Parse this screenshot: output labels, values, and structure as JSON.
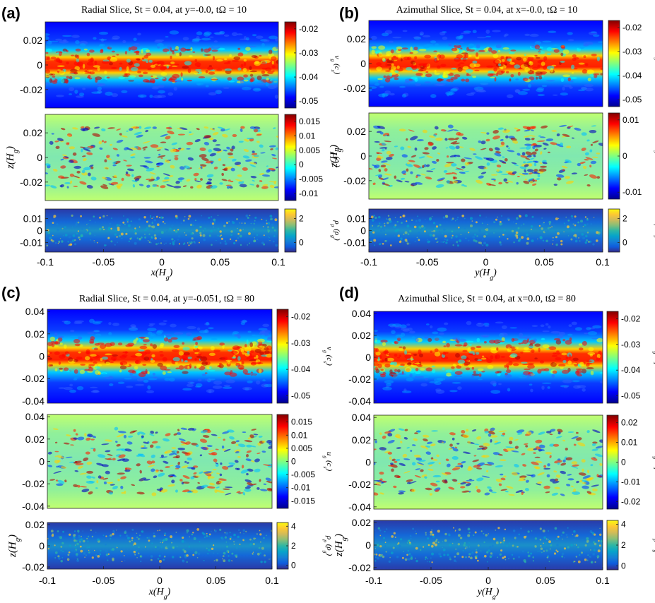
{
  "figure": {
    "panel_labels": [
      "(a)",
      "(b)",
      "(c)",
      "(d)"
    ]
  },
  "colors": {
    "jet": [
      "#00008f",
      "#0000ff",
      "#0080ff",
      "#00ffff",
      "#80ff80",
      "#ffff00",
      "#ff8000",
      "#ff0000",
      "#800000"
    ],
    "parula": [
      "#352a87",
      "#0f5cdd",
      "#1481d6",
      "#06a4ca",
      "#2eb7a4",
      "#87bf77",
      "#d1bb59",
      "#fec832",
      "#f9fb0e"
    ]
  },
  "chart_data": [
    {
      "panel": "(a)",
      "type": "heatmap",
      "title": "Radial Slice, St = 0.04, at y=-0.0, tΩ = 10",
      "xlabel": "x(H_g)",
      "xlim": [
        -0.1,
        0.1
      ],
      "xticks": [
        "-0.1",
        "-0.05",
        "0",
        "0.05",
        "0.1"
      ],
      "subplots": [
        {
          "field": "v_g (c_s)",
          "cmap": "jet",
          "yticks": [
            "0.02",
            "0",
            "-0.02"
          ],
          "cbar_ticks": [
            "-0.02",
            "-0.03",
            "-0.04",
            "-0.05"
          ],
          "ylabel": ""
        },
        {
          "field": "u_g (c_s)",
          "cmap": "jet",
          "yticks": [
            "0.02",
            "0",
            "-0.02"
          ],
          "cbar_ticks": [
            "0.015",
            "0.01",
            "0.005",
            "0",
            "-0.005",
            "-0.01"
          ],
          "ylabel": "z(H_g)"
        },
        {
          "field": "ρ_p (ρ_g)",
          "cmap": "parula",
          "yticks": [
            "0.01",
            "0",
            "-0.01"
          ],
          "cbar_ticks": [
            "2",
            "0"
          ],
          "ylabel": ""
        }
      ]
    },
    {
      "panel": "(b)",
      "type": "heatmap",
      "title": "Azimuthal Slice, St = 0.04, at x=-0.0, tΩ = 10",
      "xlabel": "y(H_g)",
      "xlim": [
        -0.1,
        0.1
      ],
      "xticks": [
        "-0.1",
        "-0.05",
        "0",
        "0.05",
        "0.1"
      ],
      "subplots": [
        {
          "field": "v_g (c_s)",
          "cmap": "jet",
          "yticks": [
            "0.02",
            "0",
            "-0.02"
          ],
          "cbar_ticks": [
            "-0.02",
            "-0.03",
            "-0.04",
            "-0.05"
          ],
          "ylabel": ""
        },
        {
          "field": "u_g (c_s)",
          "cmap": "jet",
          "yticks": [
            "0.02",
            "0",
            "-0.02"
          ],
          "cbar_ticks": [
            "0.01",
            "0",
            "-0.01"
          ],
          "ylabel": "z(H_g)"
        },
        {
          "field": "ρ_p (ρ_g)",
          "cmap": "parula",
          "yticks": [
            "0.01",
            "0",
            "-0.01"
          ],
          "cbar_ticks": [
            "2",
            "0"
          ],
          "ylabel": ""
        }
      ]
    },
    {
      "panel": "(c)",
      "type": "heatmap",
      "title": "Radial Slice, St = 0.04, at y=-0.051, tΩ = 80",
      "xlabel": "x(H_g)",
      "xlim": [
        -0.1,
        0.1
      ],
      "xticks": [
        "-0.1",
        "-0.05",
        "0",
        "0.05",
        "0.1"
      ],
      "subplots": [
        {
          "field": "v_g (c_s)",
          "cmap": "jet",
          "yticks": [
            "0.04",
            "0.02",
            "0",
            "-0.02",
            "-0.04"
          ],
          "cbar_ticks": [
            "-0.02",
            "-0.03",
            "-0.04",
            "-0.05"
          ],
          "ylabel": ""
        },
        {
          "field": "u_g (c_s)",
          "cmap": "jet",
          "yticks": [
            "0.04",
            "0.02",
            "0",
            "-0.02",
            "-0.04"
          ],
          "cbar_ticks": [
            "0.015",
            "0.01",
            "0.005",
            "0",
            "-0.005",
            "-0.01",
            "-0.015"
          ],
          "ylabel": ""
        },
        {
          "field": "ρ_p (ρ_g)",
          "cmap": "parula",
          "yticks": [
            "0.02",
            "0",
            "-0.02"
          ],
          "cbar_ticks": [
            "4",
            "2",
            "0"
          ],
          "ylabel": "z(H_g)"
        }
      ]
    },
    {
      "panel": "(d)",
      "type": "heatmap",
      "title": "Azimuthal Slice, St = 0.04, at x=0.0, tΩ = 80",
      "xlabel": "y(H_g)",
      "xlim": [
        -0.1,
        0.1
      ],
      "xticks": [
        "-0.1",
        "-0.05",
        "0",
        "0.05",
        "0.1"
      ],
      "subplots": [
        {
          "field": "v_g (c_s)",
          "cmap": "jet",
          "yticks": [
            "0.04",
            "0.02",
            "0",
            "-0.02",
            "-0.04"
          ],
          "cbar_ticks": [
            "-0.02",
            "-0.03",
            "-0.04",
            "-0.05"
          ],
          "ylabel": ""
        },
        {
          "field": "u_g (c_s)",
          "cmap": "jet",
          "yticks": [
            "0.04",
            "0.02",
            "0",
            "-0.02",
            "-0.04"
          ],
          "cbar_ticks": [
            "0.02",
            "0.01",
            "0",
            "-0.01",
            "-0.02"
          ],
          "ylabel": ""
        },
        {
          "field": "ρ_p (ρ_g)",
          "cmap": "parula",
          "yticks": [
            "0.02",
            "0",
            "-0.02"
          ],
          "cbar_ticks": [
            "4",
            "2",
            "0"
          ],
          "ylabel": "z(H_g)"
        }
      ]
    }
  ]
}
